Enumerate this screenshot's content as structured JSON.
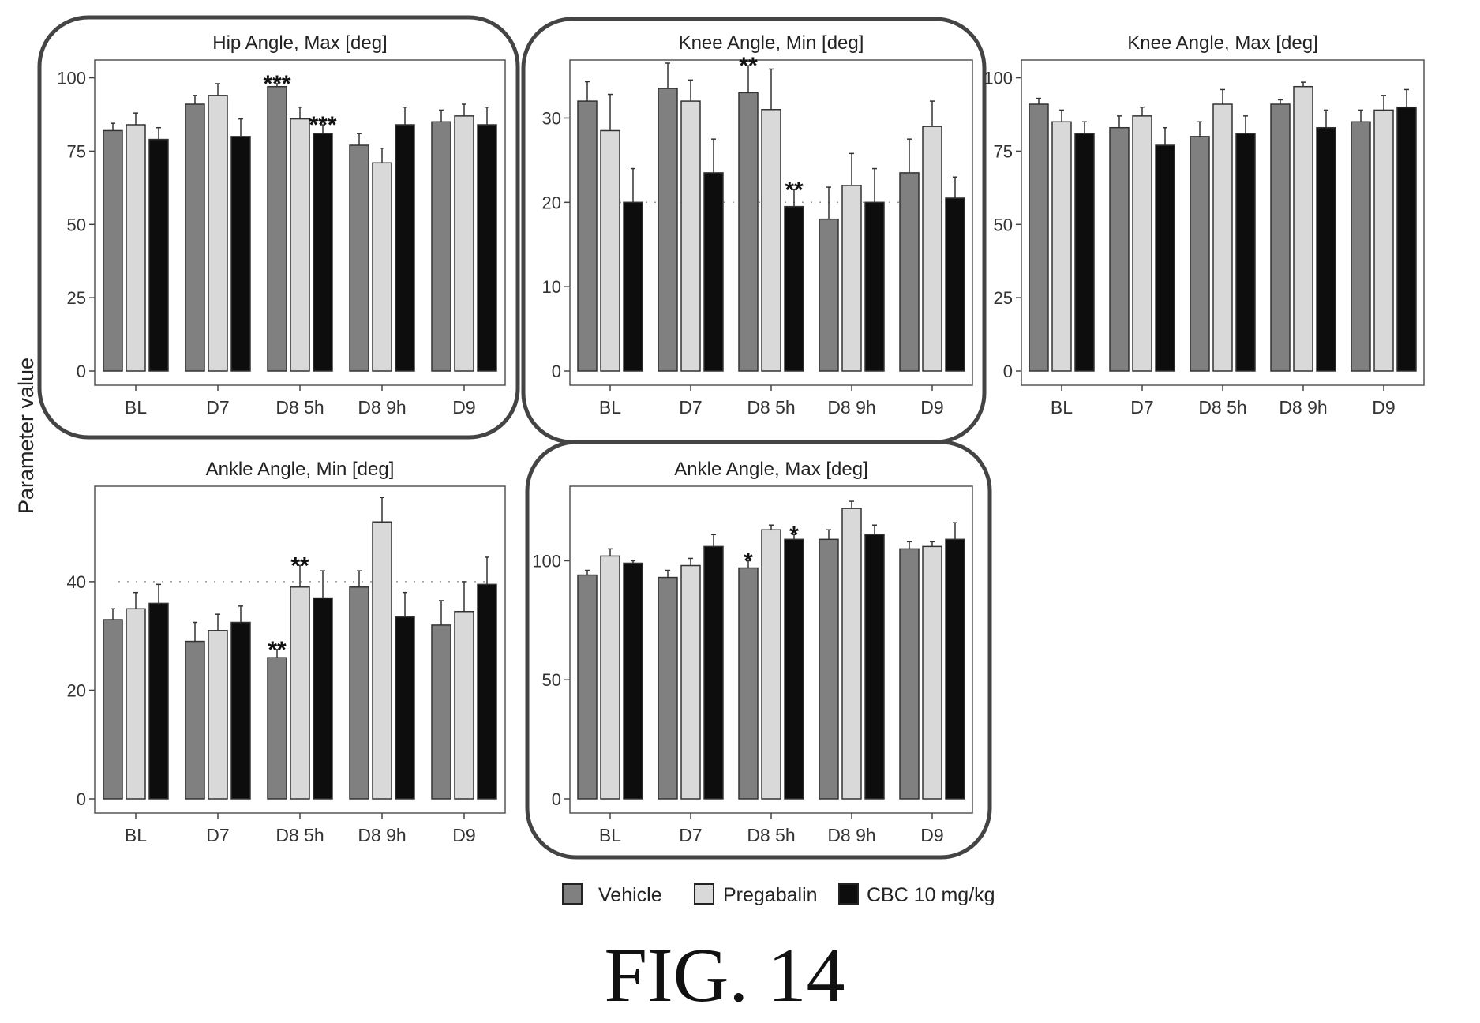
{
  "figure": {
    "y_axis_label": "Parameter value",
    "caption": "FIG. 14"
  },
  "legend": [
    {
      "label": "Vehicle",
      "color": "#808080"
    },
    {
      "label": "Pregabalin",
      "color": "#d9d9d9"
    },
    {
      "label": "CBC 10 mg/kg",
      "color": "#0d0d0d"
    }
  ],
  "chart_data": [
    {
      "type": "bar",
      "title": "Hip Angle, Max [deg]",
      "categories": [
        "BL",
        "D7",
        "D8 5h",
        "D8 9h",
        "D9"
      ],
      "ylim": [
        0,
        105
      ],
      "yticks": [
        0,
        25,
        50,
        75,
        100
      ],
      "reference_line": null,
      "highlighted": true,
      "series": [
        {
          "name": "Vehicle",
          "values": [
            82,
            91,
            97,
            77,
            85
          ],
          "errors": [
            2.5,
            3,
            1,
            4,
            4
          ]
        },
        {
          "name": "Pregabalin",
          "values": [
            84,
            94,
            86,
            71,
            87
          ],
          "errors": [
            4,
            4,
            4,
            5,
            4
          ]
        },
        {
          "name": "CBC 10 mg/kg",
          "values": [
            79,
            80,
            81,
            84,
            84
          ],
          "errors": [
            4,
            6,
            3,
            6,
            6
          ]
        }
      ],
      "annotations": [
        {
          "category": 2,
          "series": 0,
          "text": "***"
        },
        {
          "category": 2,
          "series": 2,
          "text": "***"
        }
      ]
    },
    {
      "type": "bar",
      "title": "Knee Angle, Min [deg]",
      "categories": [
        "BL",
        "D7",
        "D8 5h",
        "D8 9h",
        "D9"
      ],
      "ylim": [
        0,
        36.5
      ],
      "yticks": [
        0,
        10,
        20,
        30
      ],
      "reference_line": 20,
      "highlighted": true,
      "series": [
        {
          "name": "Vehicle",
          "values": [
            32,
            33.5,
            33,
            18,
            23.5
          ],
          "errors": [
            2.3,
            3,
            3.2,
            3.8,
            4
          ]
        },
        {
          "name": "Pregabalin",
          "values": [
            28.5,
            32,
            31,
            22,
            29
          ],
          "errors": [
            4.3,
            2.5,
            4.8,
            3.8,
            3
          ]
        },
        {
          "name": "CBC 10 mg/kg",
          "values": [
            20,
            23.5,
            19.5,
            20,
            20.5
          ],
          "errors": [
            4,
            4,
            2,
            4,
            2.5
          ]
        }
      ],
      "annotations": [
        {
          "category": 2,
          "series": 0,
          "text": "**"
        },
        {
          "category": 2,
          "series": 2,
          "text": "**"
        }
      ]
    },
    {
      "type": "bar",
      "title": "Knee Angle, Max [deg]",
      "categories": [
        "BL",
        "D7",
        "D8 5h",
        "D8 9h",
        "D9"
      ],
      "ylim": [
        0,
        105
      ],
      "yticks": [
        0,
        25,
        50,
        75,
        100
      ],
      "reference_line": null,
      "highlighted": false,
      "series": [
        {
          "name": "Vehicle",
          "values": [
            91,
            83,
            80,
            91,
            85
          ],
          "errors": [
            2,
            4,
            5,
            1.5,
            4
          ]
        },
        {
          "name": "Pregabalin",
          "values": [
            85,
            87,
            91,
            97,
            89
          ],
          "errors": [
            4,
            3,
            5,
            1.5,
            5
          ]
        },
        {
          "name": "CBC 10 mg/kg",
          "values": [
            81,
            77,
            81,
            83,
            90
          ],
          "errors": [
            4,
            6,
            6,
            6,
            6
          ]
        }
      ],
      "annotations": []
    },
    {
      "type": "bar",
      "title": "Ankle Angle, Min [deg]",
      "categories": [
        "BL",
        "D7",
        "D8 5h",
        "D8 9h",
        "D9"
      ],
      "ylim": [
        0,
        57
      ],
      "yticks": [
        0,
        20,
        40
      ],
      "reference_line": 40,
      "highlighted": false,
      "series": [
        {
          "name": "Vehicle",
          "values": [
            33,
            29,
            26,
            39,
            32
          ],
          "errors": [
            2,
            3.5,
            1.5,
            3,
            4.5
          ]
        },
        {
          "name": "Pregabalin",
          "values": [
            35,
            31,
            39,
            51,
            34.5
          ],
          "errors": [
            3,
            3,
            4,
            4.5,
            5.5
          ]
        },
        {
          "name": "CBC 10 mg/kg",
          "values": [
            36,
            32.5,
            37,
            33.5,
            39.5
          ],
          "errors": [
            3.5,
            3,
            5,
            4.5,
            5
          ]
        }
      ],
      "annotations": [
        {
          "category": 2,
          "series": 0,
          "text": "**"
        },
        {
          "category": 2,
          "series": 1,
          "text": "**"
        }
      ]
    },
    {
      "type": "bar",
      "title": "Ankle Angle, Max [deg]",
      "categories": [
        "BL",
        "D7",
        "D8 5h",
        "D8 9h",
        "D9"
      ],
      "ylim": [
        0,
        130
      ],
      "yticks": [
        0,
        50,
        100
      ],
      "reference_line": null,
      "highlighted": true,
      "series": [
        {
          "name": "Vehicle",
          "values": [
            94,
            93,
            97,
            109,
            105
          ],
          "errors": [
            2,
            3,
            3,
            4,
            3
          ]
        },
        {
          "name": "Pregabalin",
          "values": [
            102,
            98,
            113,
            122,
            106
          ],
          "errors": [
            3,
            3,
            2,
            3,
            2
          ]
        },
        {
          "name": "CBC 10 mg/kg",
          "values": [
            99,
            106,
            109,
            111,
            109
          ],
          "errors": [
            1,
            5,
            2,
            4,
            7
          ]
        }
      ],
      "annotations": [
        {
          "category": 2,
          "series": 0,
          "text": "*"
        },
        {
          "category": 2,
          "series": 2,
          "text": "*"
        }
      ]
    }
  ]
}
